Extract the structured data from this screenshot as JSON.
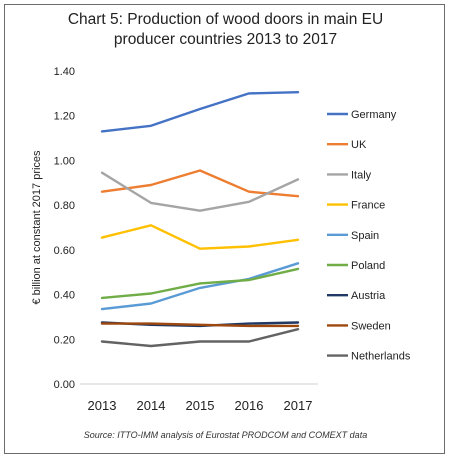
{
  "chart_data": {
    "type": "line",
    "title_lines": [
      "Chart 5: Production of wood doors in main EU",
      "producer countries 2013 to 2017"
    ],
    "ylabel": "€ billion at constant 2017 prices",
    "xlabel": "",
    "x": [
      "2013",
      "2014",
      "2015",
      "2016",
      "2017"
    ],
    "ylim": [
      0,
      1.4
    ],
    "yticks": [
      "0.00",
      "0.20",
      "0.40",
      "0.60",
      "0.80",
      "1.00",
      "1.20",
      "1.40"
    ],
    "grid": false,
    "legend_position": "right",
    "source": "Source: ITTO-IMM analysis of Eurostat PRODCOM and COMEXT data",
    "series": [
      {
        "name": "Germany",
        "color": "#4472c4",
        "values": [
          1.13,
          1.155,
          1.23,
          1.3,
          1.305
        ]
      },
      {
        "name": "UK",
        "color": "#ed7d31",
        "values": [
          0.86,
          0.89,
          0.955,
          0.86,
          0.84
        ]
      },
      {
        "name": "Italy",
        "color": "#a5a5a5",
        "values": [
          0.945,
          0.81,
          0.775,
          0.815,
          0.915
        ]
      },
      {
        "name": "France",
        "color": "#ffc000",
        "values": [
          0.655,
          0.71,
          0.605,
          0.615,
          0.645
        ]
      },
      {
        "name": "Spain",
        "color": "#5b9bd5",
        "values": [
          0.335,
          0.36,
          0.43,
          0.47,
          0.54
        ]
      },
      {
        "name": "Poland",
        "color": "#70ad47",
        "values": [
          0.385,
          0.405,
          0.45,
          0.465,
          0.515
        ]
      },
      {
        "name": "Austria",
        "color": "#1f3864",
        "values": [
          0.275,
          0.265,
          0.26,
          0.27,
          0.275
        ]
      },
      {
        "name": "Sweden",
        "color": "#9e480e",
        "values": [
          0.27,
          0.27,
          0.265,
          0.26,
          0.26
        ]
      },
      {
        "name": "Netherlands",
        "color": "#636363",
        "values": [
          0.19,
          0.17,
          0.19,
          0.19,
          0.245
        ]
      }
    ]
  }
}
